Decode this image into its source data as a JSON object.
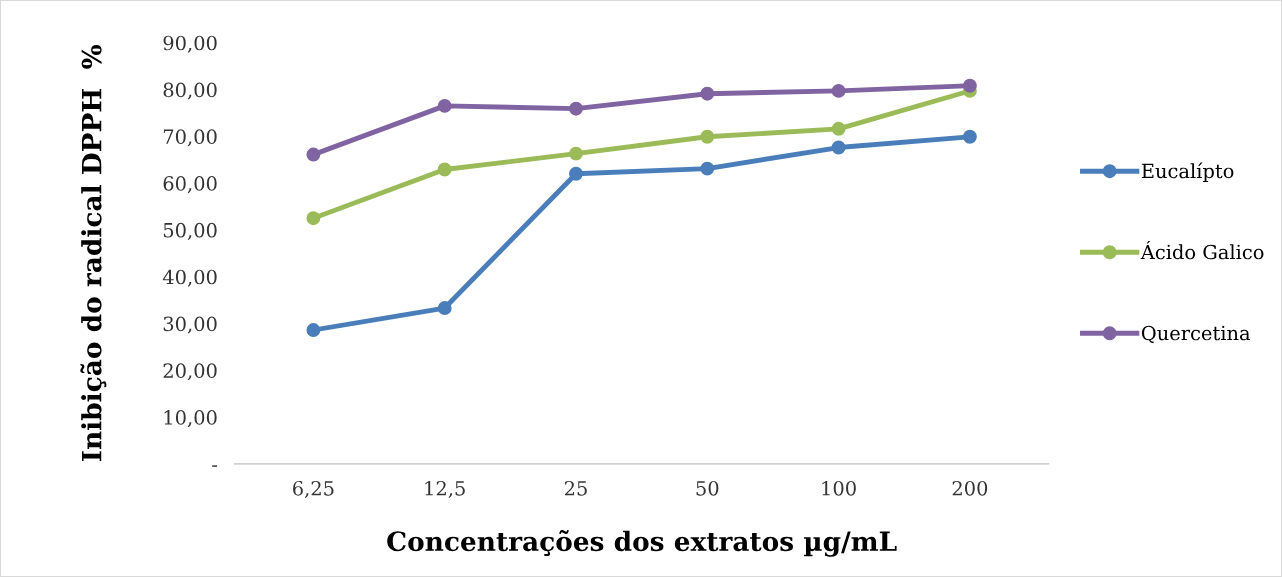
{
  "chart_data": {
    "type": "line",
    "xlabel": "Concentrações dos extratos µg/mL",
    "ylabel": "Inibição do radical DPPH  %",
    "categories": [
      "6,25",
      "12,5",
      "25",
      "50",
      "100",
      "200"
    ],
    "series": [
      {
        "name": "Eucalípto",
        "color": "#4a7ebb",
        "values": [
          28.6,
          33.3,
          62.0,
          63.1,
          67.6,
          69.9
        ]
      },
      {
        "name": "Ácido Galico",
        "color": "#9bbb59",
        "values": [
          52.5,
          62.9,
          66.3,
          69.9,
          71.6,
          79.7
        ]
      },
      {
        "name": "Quercetina",
        "color": "#8064a2",
        "values": [
          66.1,
          76.5,
          75.9,
          79.1,
          79.7,
          80.8
        ]
      }
    ],
    "ylim": [
      0,
      90
    ],
    "yticks": [
      {
        "value": 0,
        "label": "-"
      },
      {
        "value": 10,
        "label": "10,00"
      },
      {
        "value": 20,
        "label": "20,00"
      },
      {
        "value": 30,
        "label": "30,00"
      },
      {
        "value": 40,
        "label": "40,00"
      },
      {
        "value": 50,
        "label": "50,00"
      },
      {
        "value": 60,
        "label": "60,00"
      },
      {
        "value": 70,
        "label": "70,00"
      },
      {
        "value": 80,
        "label": "80,00"
      },
      {
        "value": 90,
        "label": "90,00"
      }
    ],
    "grid": false,
    "legend": "right",
    "marker": "circle",
    "line_style": "solid"
  }
}
